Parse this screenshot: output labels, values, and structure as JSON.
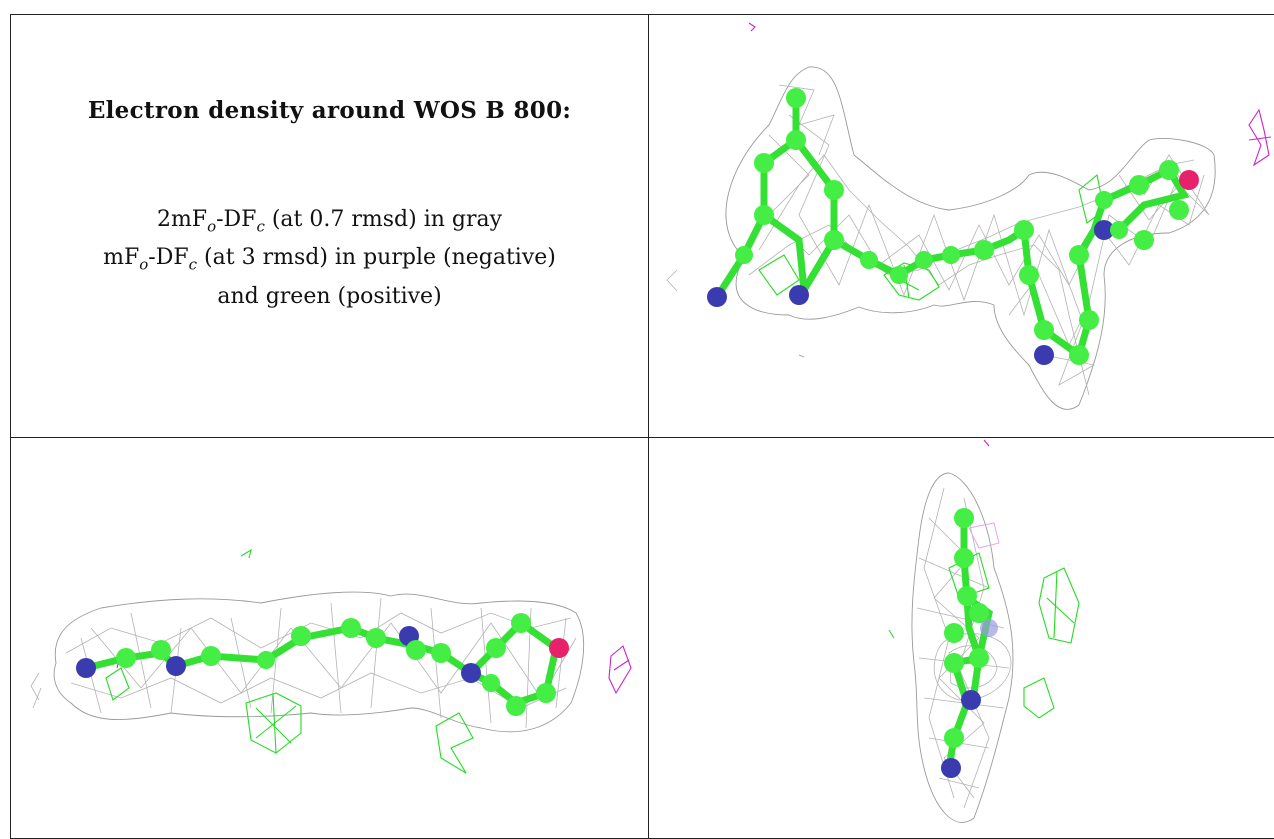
{
  "caption": {
    "title": "Electron density around WOS B 800:",
    "line1": {
      "pre": "2mF",
      "sub1": "o",
      "mid": "-DF",
      "sub2": "c",
      "post": " (at 0.7 rmsd) in gray"
    },
    "line2": {
      "pre": "mF",
      "sub1": "o",
      "mid": "-DF",
      "sub2": "c",
      "post": " (at 3 rmsd) in purple (negative)"
    },
    "line3": "and green (positive)"
  },
  "colors": {
    "map_2fofc": "#9a9a9a",
    "map_positive": "#22dd22",
    "map_negative": "#cc22cc",
    "carbon": "#44ee44",
    "nitrogen": "#3b3bb0",
    "oxygen": "#e8226a"
  },
  "views": [
    {
      "name": "view-top-right"
    },
    {
      "name": "view-bottom-left"
    },
    {
      "name": "view-bottom-right"
    }
  ]
}
